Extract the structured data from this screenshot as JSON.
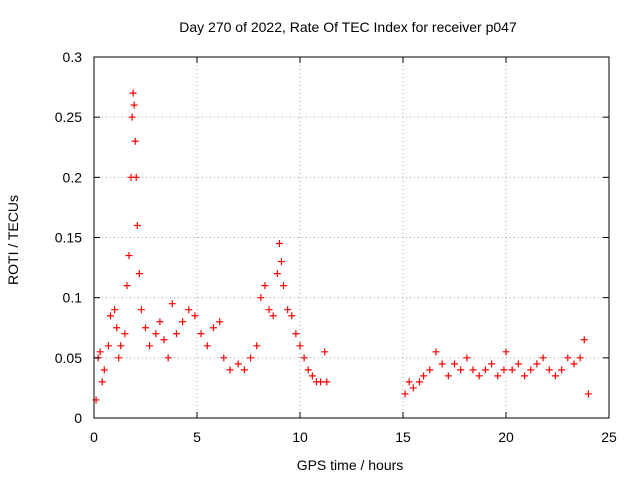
{
  "chart_data": {
    "type": "scatter",
    "title": "Day 270 of 2022, Rate Of TEC Index for receiver p047",
    "xlabel": "GPS time / hours",
    "ylabel": "ROTI / TECUs",
    "xlim": [
      0,
      25
    ],
    "ylim": [
      0,
      0.3
    ],
    "x_ticks": [
      0,
      5,
      10,
      15,
      20,
      25
    ],
    "x_tick_labels": [
      "0",
      "5",
      "10",
      "15",
      "20",
      "25"
    ],
    "y_ticks": [
      0,
      0.05,
      0.1,
      0.15,
      0.2,
      0.25,
      0.3
    ],
    "y_tick_labels": [
      "0",
      "0.05",
      "0.1",
      "0.15",
      "0.2",
      "0.25",
      "0.3"
    ],
    "grid": true,
    "marker": "plus",
    "color": "#ff0000",
    "series": [
      {
        "points": [
          [
            0.1,
            0.015
          ],
          [
            0.2,
            0.05
          ],
          [
            0.3,
            0.055
          ],
          [
            0.4,
            0.03
          ],
          [
            0.5,
            0.04
          ],
          [
            0.7,
            0.06
          ],
          [
            0.8,
            0.085
          ],
          [
            1.0,
            0.09
          ],
          [
            1.1,
            0.075
          ],
          [
            1.2,
            0.05
          ],
          [
            1.3,
            0.06
          ],
          [
            1.5,
            0.07
          ],
          [
            1.6,
            0.11
          ],
          [
            1.7,
            0.135
          ],
          [
            1.8,
            0.2
          ],
          [
            1.85,
            0.25
          ],
          [
            1.9,
            0.27
          ],
          [
            1.95,
            0.26
          ],
          [
            2.0,
            0.23
          ],
          [
            2.05,
            0.2
          ],
          [
            2.1,
            0.16
          ],
          [
            2.2,
            0.12
          ],
          [
            2.3,
            0.09
          ],
          [
            2.5,
            0.075
          ],
          [
            2.7,
            0.06
          ],
          [
            3.0,
            0.07
          ],
          [
            3.2,
            0.08
          ],
          [
            3.4,
            0.065
          ],
          [
            3.6,
            0.05
          ],
          [
            3.8,
            0.095
          ],
          [
            4.0,
            0.07
          ],
          [
            4.3,
            0.08
          ],
          [
            4.6,
            0.09
          ],
          [
            4.9,
            0.085
          ],
          [
            5.2,
            0.07
          ],
          [
            5.5,
            0.06
          ],
          [
            5.8,
            0.075
          ],
          [
            6.1,
            0.08
          ],
          [
            6.3,
            0.05
          ],
          [
            6.6,
            0.04
          ],
          [
            7.0,
            0.045
          ],
          [
            7.3,
            0.04
          ],
          [
            7.6,
            0.05
          ],
          [
            7.9,
            0.06
          ],
          [
            8.1,
            0.1
          ],
          [
            8.3,
            0.11
          ],
          [
            8.5,
            0.09
          ],
          [
            8.7,
            0.085
          ],
          [
            8.9,
            0.12
          ],
          [
            9.0,
            0.145
          ],
          [
            9.1,
            0.13
          ],
          [
            9.2,
            0.11
          ],
          [
            9.4,
            0.09
          ],
          [
            9.6,
            0.085
          ],
          [
            9.8,
            0.07
          ],
          [
            10.0,
            0.06
          ],
          [
            10.2,
            0.05
          ],
          [
            10.4,
            0.04
          ],
          [
            10.6,
            0.035
          ],
          [
            10.8,
            0.03
          ],
          [
            11.0,
            0.03
          ],
          [
            11.2,
            0.055
          ],
          [
            11.3,
            0.03
          ],
          [
            15.1,
            0.02
          ],
          [
            15.3,
            0.03
          ],
          [
            15.5,
            0.025
          ],
          [
            15.8,
            0.03
          ],
          [
            16.0,
            0.035
          ],
          [
            16.3,
            0.04
          ],
          [
            16.6,
            0.055
          ],
          [
            16.9,
            0.045
          ],
          [
            17.2,
            0.035
          ],
          [
            17.5,
            0.045
          ],
          [
            17.8,
            0.04
          ],
          [
            18.1,
            0.05
          ],
          [
            18.4,
            0.04
          ],
          [
            18.7,
            0.035
          ],
          [
            19.0,
            0.04
          ],
          [
            19.3,
            0.045
          ],
          [
            19.6,
            0.035
          ],
          [
            19.9,
            0.04
          ],
          [
            20.0,
            0.055
          ],
          [
            20.3,
            0.04
          ],
          [
            20.6,
            0.045
          ],
          [
            20.9,
            0.035
          ],
          [
            21.2,
            0.04
          ],
          [
            21.5,
            0.045
          ],
          [
            21.8,
            0.05
          ],
          [
            22.1,
            0.04
          ],
          [
            22.4,
            0.035
          ],
          [
            22.7,
            0.04
          ],
          [
            23.0,
            0.05
          ],
          [
            23.3,
            0.045
          ],
          [
            23.6,
            0.05
          ],
          [
            23.8,
            0.065
          ],
          [
            24.0,
            0.02
          ]
        ]
      }
    ]
  }
}
